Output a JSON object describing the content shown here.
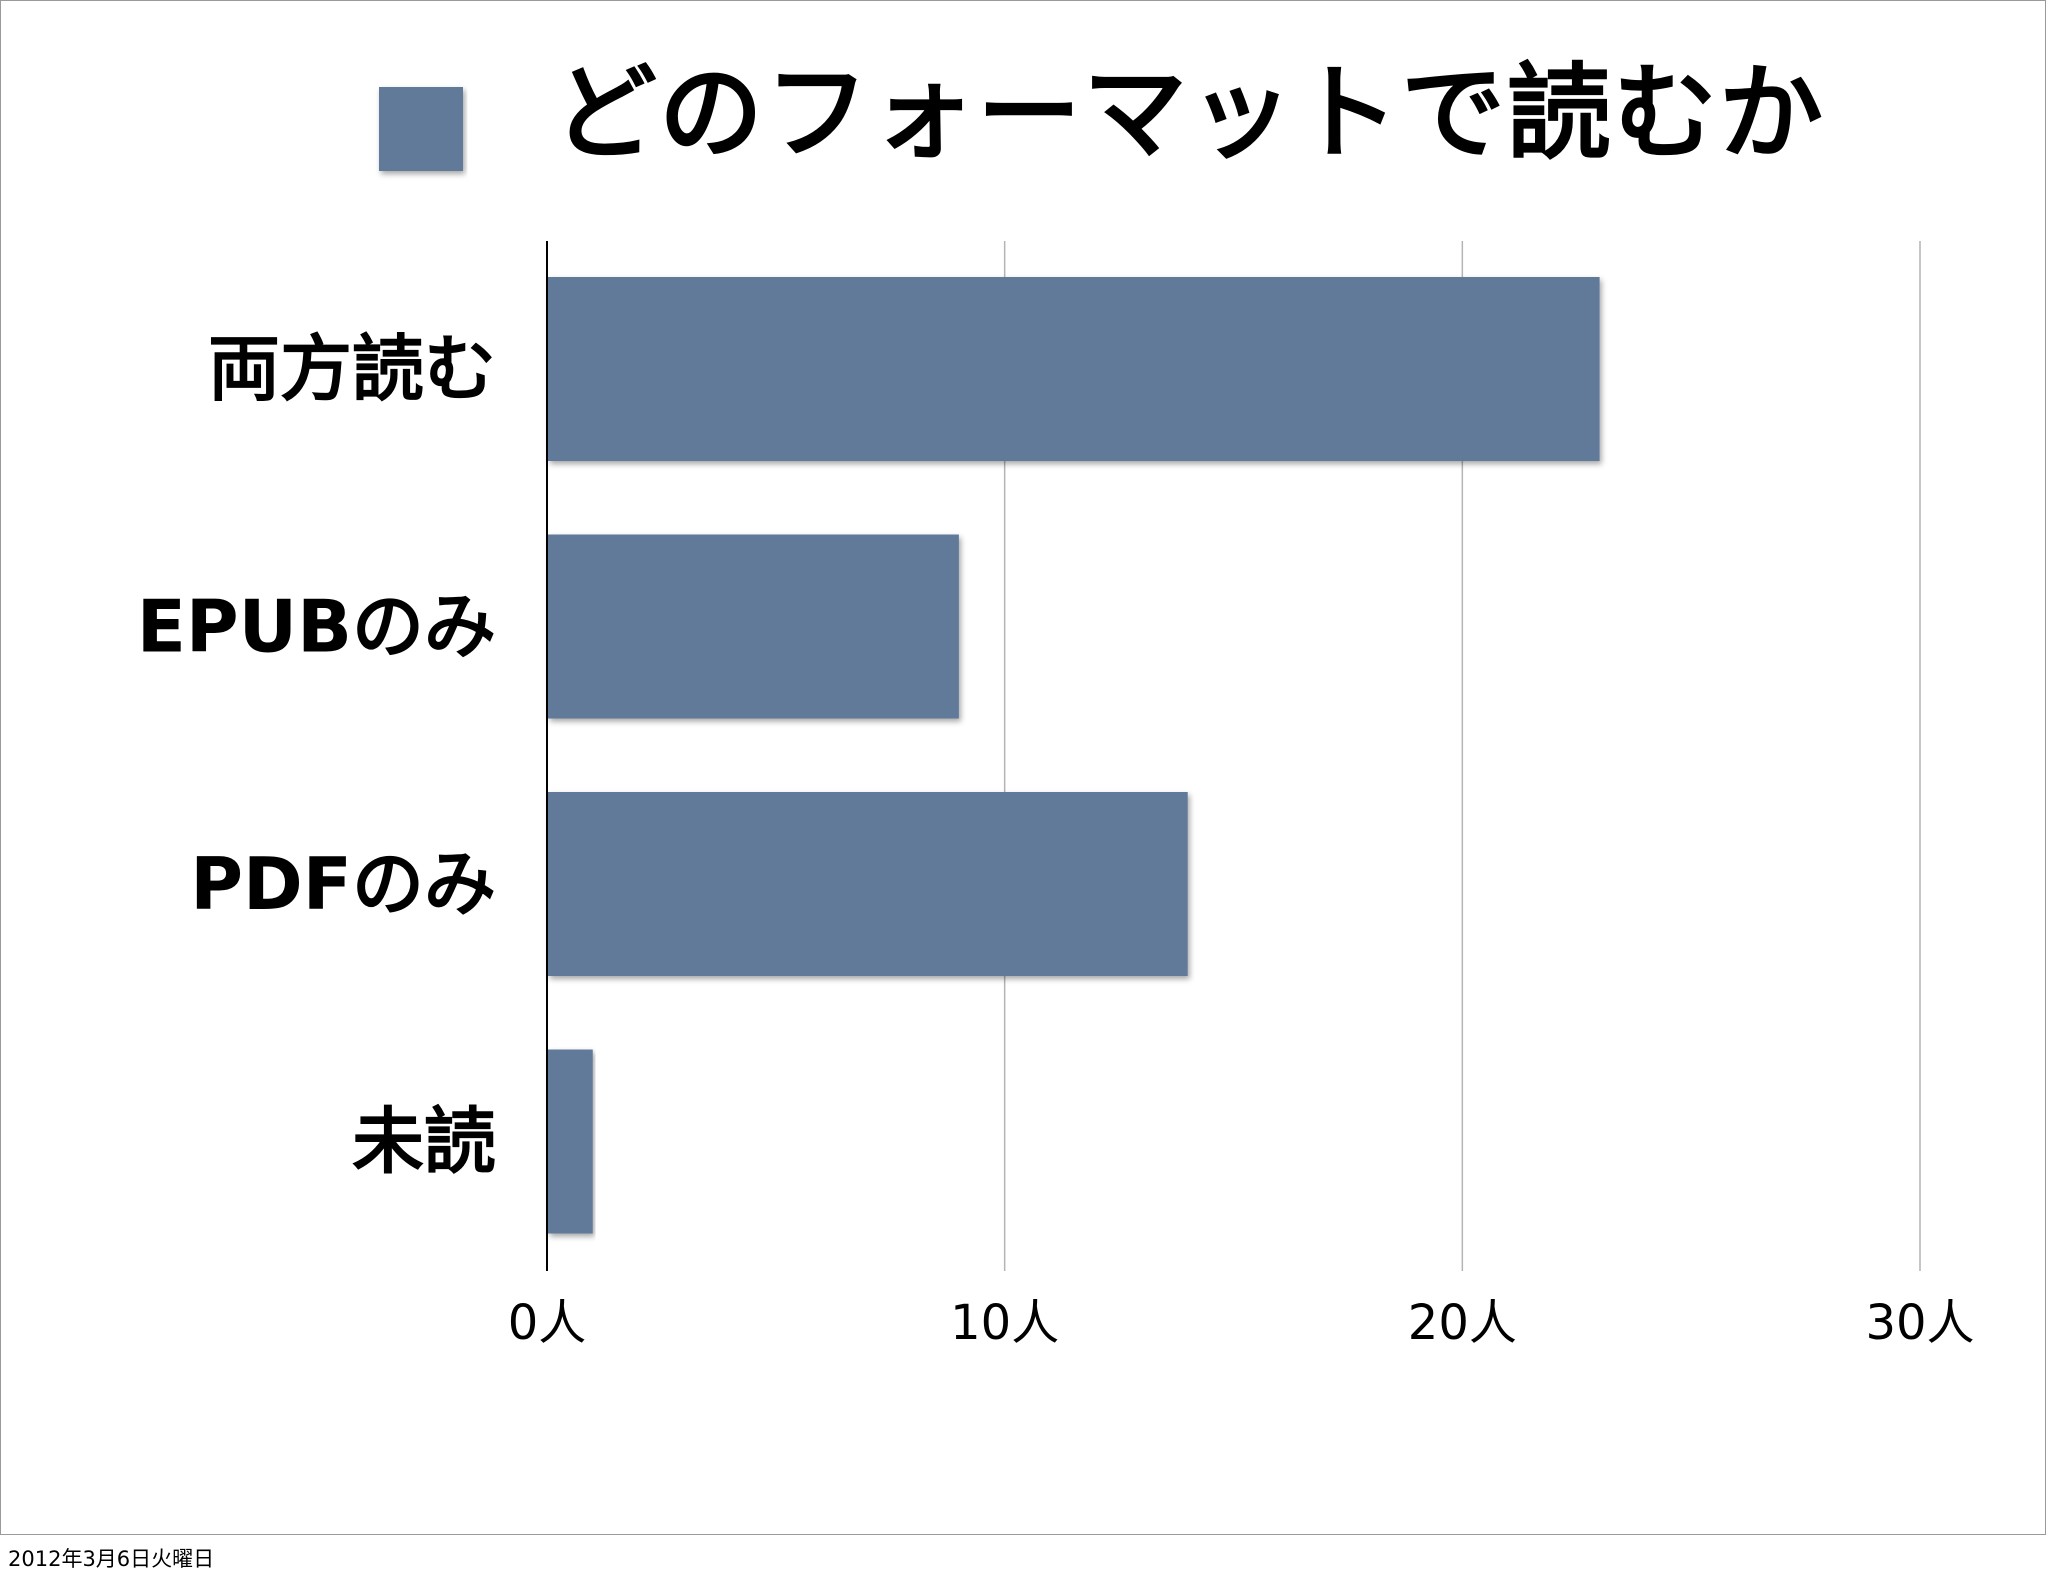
{
  "chart_data": {
    "type": "bar",
    "orientation": "horizontal",
    "legend": {
      "entries": [
        {
          "label": "どのフォーマットで読むか",
          "color": "#627a9a"
        }
      ],
      "placement": "top"
    },
    "categories": [
      "両方読む",
      "EPUBのみ",
      "PDFのみ",
      "未読"
    ],
    "series": [
      {
        "name": "どのフォーマットで読むか",
        "values": [
          23,
          9,
          14,
          1
        ],
        "color": "#627a9a"
      }
    ],
    "xticks": [
      {
        "value": 0,
        "label": "0人"
      },
      {
        "value": 10,
        "label": "10人"
      },
      {
        "value": 20,
        "label": "20人"
      },
      {
        "value": 30,
        "label": "30人"
      }
    ],
    "xlim": [
      0,
      30
    ],
    "grid": true
  },
  "footer": {
    "date": "2012年3月6日火曜日"
  },
  "colors": {
    "bar": "#627a9a",
    "grid": "#b4b4b4",
    "axis": "#000000"
  }
}
